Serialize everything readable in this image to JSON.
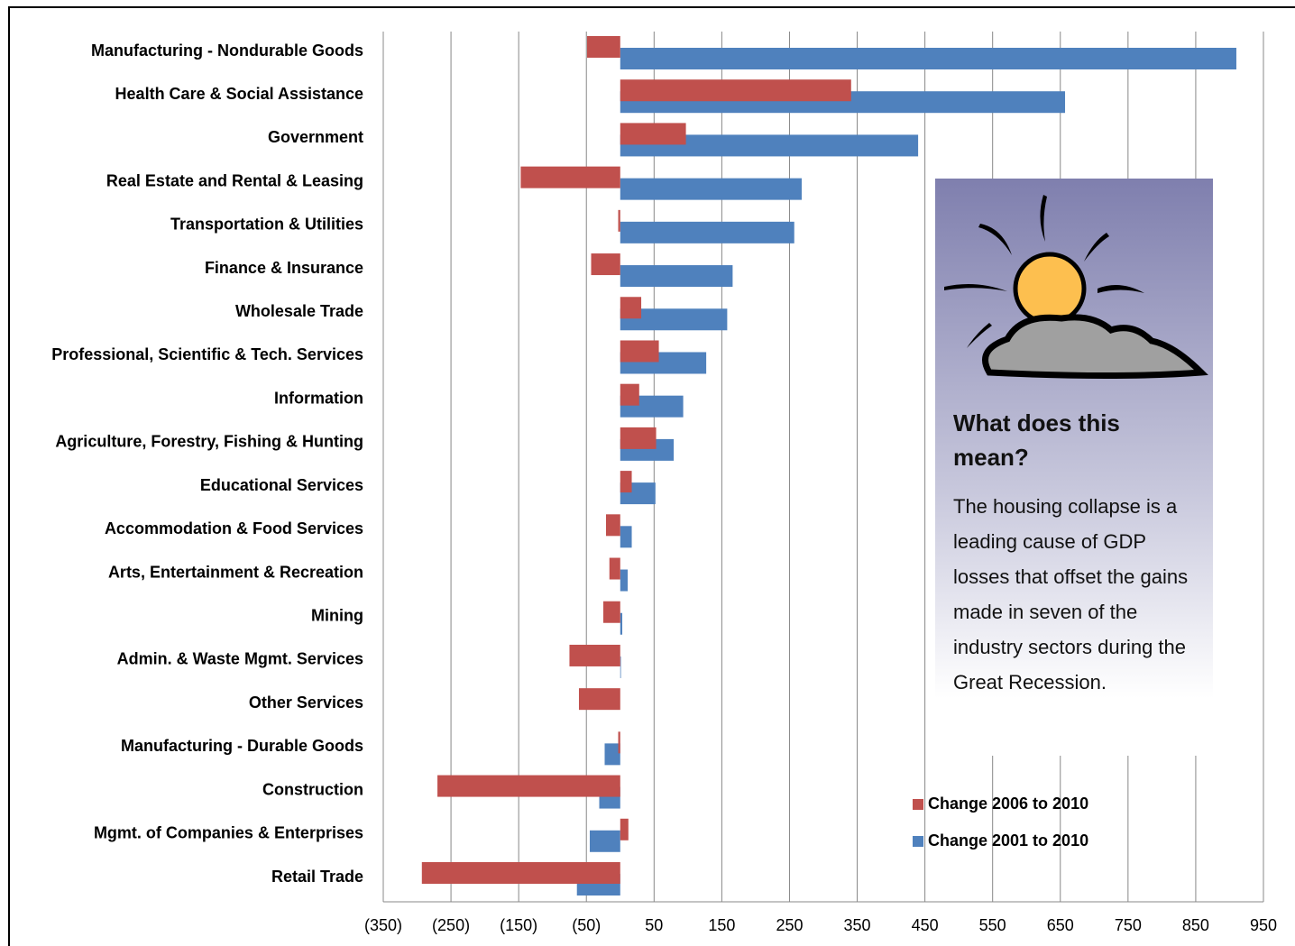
{
  "chart_data": {
    "type": "bar",
    "orientation": "horizontal",
    "categories": [
      "Manufacturing - Nondurable Goods",
      "Health Care & Social Assistance",
      "Government",
      "Real Estate  and Rental & Leasing",
      "Transportation & Utilities",
      "Finance & Insurance",
      "Wholesale Trade",
      "Professional, Scientific & Tech. Services",
      "Information",
      "Agriculture, Forestry, Fishing & Hunting",
      "Educational Services",
      "Accommodation & Food Services",
      "Arts, Entertainment & Recreation",
      "Mining",
      "Admin. & Waste Mgmt. Services",
      "Other Services",
      "Manufacturing - Durable Goods",
      "Construction",
      "Mgmt. of Companies & Enterprises",
      "Retail Trade"
    ],
    "series": [
      {
        "name": "Change 2006 to 2010",
        "color": "#c0504d",
        "values": [
          -49,
          341,
          97,
          -147,
          -3,
          -43,
          31,
          57,
          28,
          53,
          17,
          -21,
          -16,
          -25,
          -75,
          -61,
          -3,
          -270,
          12,
          -293
        ]
      },
      {
        "name": "Change 2001 to 2010",
        "color": "#4f81bd",
        "values": [
          910,
          657,
          440,
          268,
          257,
          166,
          158,
          127,
          93,
          79,
          52,
          17,
          11,
          3,
          1,
          0,
          -23,
          -31,
          -45,
          -64
        ]
      }
    ],
    "xlim": [
      -350,
      950
    ],
    "xticks": [
      {
        "value": -350,
        "label": "(350)"
      },
      {
        "value": -250,
        "label": "(250)"
      },
      {
        "value": -150,
        "label": "(150)"
      },
      {
        "value": -50,
        "label": "(50)"
      },
      50,
      150,
      250,
      350,
      450,
      550,
      650,
      750,
      850,
      950
    ],
    "grid": true,
    "legend": "lower right",
    "annotation": {
      "title": "What does this mean?",
      "text": "The housing collapse is a leading cause of GDP losses that offset the gains made in seven of the industry sectors during the Great Recession."
    }
  }
}
